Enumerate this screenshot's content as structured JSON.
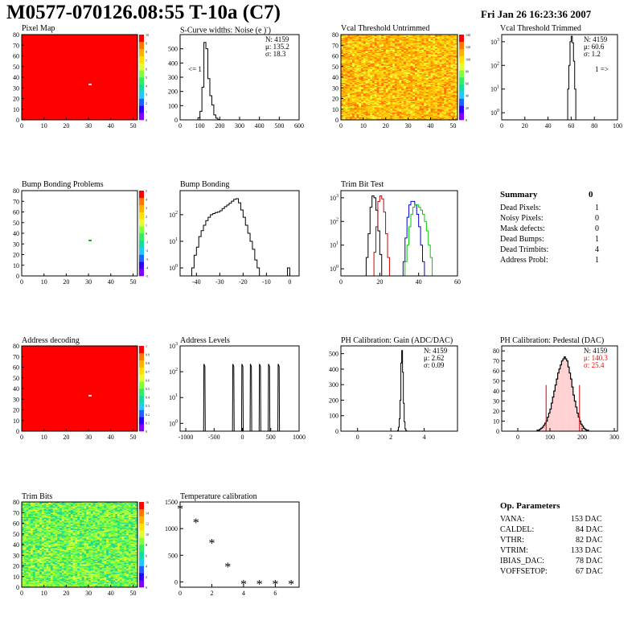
{
  "header": {
    "title": "M0577-070126.08:55 T-10a (C7)",
    "timestamp": "Fri Jan 26 16:23:36 2007"
  },
  "summary": {
    "title": "Summary",
    "total": "0",
    "rows": [
      {
        "label": "Dead Pixels:",
        "value": "1"
      },
      {
        "label": "Noisy Pixels:",
        "value": "0"
      },
      {
        "label": "Mask defects:",
        "value": "0"
      },
      {
        "label": "Dead Bumps:",
        "value": "1"
      },
      {
        "label": "Dead Trimbits:",
        "value": "4"
      },
      {
        "label": "Address Probl:",
        "value": "1"
      }
    ]
  },
  "op_parameters": {
    "title": "Op. Parameters",
    "rows": [
      {
        "label": "VANA:",
        "value": "153 DAC"
      },
      {
        "label": "CALDEL:",
        "value": "84 DAC"
      },
      {
        "label": "VTHR:",
        "value": "82 DAC"
      },
      {
        "label": "VTRIM:",
        "value": "133 DAC"
      },
      {
        "label": "IBIAS_DAC:",
        "value": "78 DAC"
      },
      {
        "label": "VOFFSETOP:",
        "value": "67 DAC"
      }
    ]
  },
  "colors": {
    "red": "#ff0000",
    "black": "#000000",
    "blue": "#0000cc",
    "green": "#00cc00",
    "palette": [
      "#ff0000",
      "#ff7800",
      "#ffb000",
      "#ffe000",
      "#e0ff30",
      "#80ff40",
      "#30ee60",
      "#10dda0",
      "#20c8ff",
      "#2060ff",
      "#3000ff",
      "#8000ff"
    ]
  },
  "chart_data": [
    {
      "id": "pixel-map",
      "type": "heatmap",
      "title": "Pixel Map",
      "xlim": [
        0,
        52
      ],
      "ylim": [
        0,
        80
      ],
      "xticks": [
        0,
        10,
        20,
        30,
        40,
        50
      ],
      "yticks": [
        0,
        10,
        20,
        30,
        40,
        50,
        60,
        70,
        80
      ],
      "fill": "uniform-red",
      "zticks": [
        "0",
        "1",
        "2",
        "3",
        "4",
        "5",
        "6",
        "7",
        "8",
        "9",
        "10"
      ],
      "special_cells": [
        {
          "x": 30,
          "y": 33,
          "color": "#ffffff"
        }
      ]
    },
    {
      "id": "scurve-noise",
      "type": "bar",
      "title": "S-Curve widths: Noise (e )",
      "xlim": [
        0,
        600
      ],
      "ylim": [
        0,
        600
      ],
      "xticks": [
        0,
        100,
        200,
        300,
        400,
        500,
        600
      ],
      "yticks": [
        0,
        100,
        200,
        300,
        400,
        500
      ],
      "bins": {
        "x0": 90,
        "width": 10,
        "counts": [
          15,
          60,
          230,
          545,
          500,
          290,
          170,
          105,
          35,
          12,
          3
        ]
      },
      "stats": [
        "N: 4159",
        "μ: 135.2",
        "σ: 18.3"
      ],
      "annotation": "<= 1"
    },
    {
      "id": "vcal-untrimmed",
      "type": "heatmap",
      "title": "Vcal Threshold Untrimmed",
      "xlim": [
        0,
        52
      ],
      "ylim": [
        0,
        80
      ],
      "xticks": [
        0,
        10,
        20,
        30,
        40,
        50
      ],
      "yticks": [
        0,
        10,
        20,
        30,
        40,
        50,
        60,
        70,
        80
      ],
      "fill": "noisy-yellow-orange",
      "zticks": [
        "0",
        "20",
        "40",
        "60",
        "80",
        "100",
        "120",
        "140"
      ]
    },
    {
      "id": "vcal-trimmed",
      "type": "bar",
      "title": "Vcal Threshold Trimmed",
      "scale": "log",
      "xlim": [
        0,
        100
      ],
      "ylim": [
        0.5,
        2000
      ],
      "xticks": [
        0,
        20,
        40,
        60,
        80,
        100
      ],
      "bins": {
        "x0": 57,
        "width": 1,
        "counts": [
          10,
          100,
          1000,
          1700,
          900,
          150,
          10
        ]
      },
      "stats": [
        "N: 4159",
        "μ: 60.6",
        "σ: 1.2"
      ],
      "annotation": "1 =>"
    },
    {
      "id": "bump-bonding-problems",
      "type": "heatmap",
      "title": "Bump Bonding Problems",
      "xlim": [
        0,
        52
      ],
      "ylim": [
        0,
        80
      ],
      "xticks": [
        0,
        10,
        20,
        30,
        40,
        50
      ],
      "yticks": [
        0,
        10,
        20,
        30,
        40,
        50,
        60,
        70,
        80
      ],
      "fill": "empty",
      "zticks": [
        "-5",
        "-4",
        "-3",
        "-2",
        "-1",
        "0",
        "1",
        "2",
        "3",
        "4",
        "5"
      ],
      "special_cells": [
        {
          "x": 30,
          "y": 33,
          "color": "#00aa00"
        }
      ]
    },
    {
      "id": "bump-bonding",
      "type": "bar",
      "title": "Bump Bonding",
      "scale": "log",
      "xlim": [
        -47,
        4
      ],
      "ylim": [
        0.5,
        800
      ],
      "xticks": [
        -40,
        -30,
        -20,
        -10,
        0
      ],
      "bins": {
        "x0": -42,
        "width": 1,
        "counts": [
          1,
          3,
          6,
          15,
          25,
          40,
          60,
          80,
          100,
          110,
          120,
          125,
          140,
          170,
          200,
          230,
          270,
          320,
          380,
          400,
          280,
          150,
          80,
          40,
          20,
          10,
          5,
          2,
          1,
          0,
          0,
          0,
          0,
          0,
          0,
          0,
          0,
          0,
          0,
          0,
          0,
          1
        ]
      }
    },
    {
      "id": "trim-bit-test",
      "type": "line",
      "title": "Trim Bit Test",
      "scale": "log",
      "xlim": [
        0,
        60
      ],
      "ylim": [
        0.5,
        2000
      ],
      "xticks": [
        0,
        20,
        40,
        60
      ],
      "series": [
        {
          "color": "#000000",
          "x0": 13,
          "counts": [
            3,
            30,
            400,
            1200,
            1000,
            300,
            40,
            4
          ]
        },
        {
          "color": "#cc0000",
          "x0": 17,
          "counts": [
            5,
            60,
            700,
            1200,
            900,
            250,
            30,
            3
          ]
        },
        {
          "color": "#0000cc",
          "x0": 32,
          "counts": [
            2,
            20,
            150,
            500,
            700,
            700,
            500,
            200,
            60,
            10,
            2
          ]
        },
        {
          "color": "#00cc00",
          "x0": 33,
          "counts": [
            2,
            10,
            60,
            200,
            400,
            500,
            500,
            400,
            300,
            200,
            100,
            40,
            10,
            3
          ]
        }
      ]
    },
    {
      "id": "address-decoding",
      "type": "heatmap",
      "title": "Address decoding",
      "xlim": [
        0,
        52
      ],
      "ylim": [
        0,
        80
      ],
      "xticks": [
        0,
        10,
        20,
        30,
        40,
        50
      ],
      "yticks": [
        0,
        10,
        20,
        30,
        40,
        50,
        60,
        70,
        80
      ],
      "fill": "uniform-red",
      "zticks": [
        "0",
        "0.1",
        "0.2",
        "0.3",
        "0.4",
        "0.5",
        "0.6",
        "0.7",
        "0.8",
        "0.9",
        "1"
      ],
      "special_cells": [
        {
          "x": 30,
          "y": 33,
          "color": "#ffffff"
        }
      ]
    },
    {
      "id": "address-levels",
      "type": "line",
      "title": "Address Levels",
      "scale": "log",
      "xlim": [
        -1100,
        1000
      ],
      "ylim": [
        0.5,
        1000
      ],
      "xticks": [
        -1000,
        -500,
        0,
        500,
        1000
      ],
      "peaks": [
        -670,
        -160,
        0,
        150,
        310,
        470,
        640
      ],
      "peak_height": 200
    },
    {
      "id": "ph-gain",
      "type": "bar",
      "title": "PH Calibration: Gain (ADC/DAC)",
      "xlim": [
        -1,
        6
      ],
      "ylim": [
        0,
        550
      ],
      "xticks": [
        0,
        2,
        4
      ],
      "yticks": [
        0,
        100,
        200,
        300,
        400,
        500
      ],
      "bins": {
        "x0": 2.4,
        "width": 0.05,
        "counts": [
          5,
          25,
          80,
          200,
          440,
          520,
          380,
          180,
          60,
          15,
          3
        ]
      },
      "stats": [
        "N: 4159",
        "μ: 2.62",
        "σ: 0.09"
      ]
    },
    {
      "id": "ph-pedestal",
      "type": "bar",
      "title": "PH Calibration: Pedestal (DAC)",
      "xlim": [
        -50,
        310
      ],
      "ylim": [
        0,
        85
      ],
      "xticks": [
        0,
        100,
        200,
        300
      ],
      "yticks": [
        0,
        10,
        20,
        30,
        40,
        50,
        60,
        70,
        80
      ],
      "bins": {
        "x0": 60,
        "width": 4,
        "counts": [
          1,
          1,
          2,
          3,
          4,
          6,
          8,
          10,
          14,
          18,
          22,
          28,
          34,
          40,
          46,
          52,
          58,
          62,
          66,
          70,
          72,
          74,
          72,
          70,
          64,
          58,
          52,
          44,
          36,
          30,
          24,
          18,
          14,
          10,
          7,
          5,
          3,
          2,
          1,
          1
        ]
      },
      "stats": [
        "N: 4159",
        "μ: 140.3",
        "σ: 25.4"
      ],
      "cut_lines": [
        88,
        192
      ]
    },
    {
      "id": "trim-bits",
      "type": "heatmap",
      "title": "Trim Bits",
      "xlim": [
        0,
        52
      ],
      "ylim": [
        0,
        80
      ],
      "xticks": [
        0,
        10,
        20,
        30,
        40,
        50
      ],
      "yticks": [
        0,
        10,
        20,
        30,
        40,
        50,
        60,
        70,
        80
      ],
      "fill": "noisy-green",
      "zticks": [
        "0",
        "2",
        "4",
        "6",
        "8",
        "10",
        "12",
        "14",
        "16"
      ]
    },
    {
      "id": "temperature-calibration",
      "type": "scatter",
      "title": "Temperature calibration",
      "xlim": [
        0,
        7.5
      ],
      "ylim": [
        -100,
        1500
      ],
      "xticks": [
        0,
        2,
        4,
        6
      ],
      "yticks": [
        0,
        500,
        1000,
        1500
      ],
      "x": [
        0,
        1,
        2,
        3,
        4,
        5,
        6,
        7
      ],
      "y": [
        1380,
        1120,
        740,
        290,
        -30,
        -30,
        -30,
        -30
      ]
    }
  ]
}
